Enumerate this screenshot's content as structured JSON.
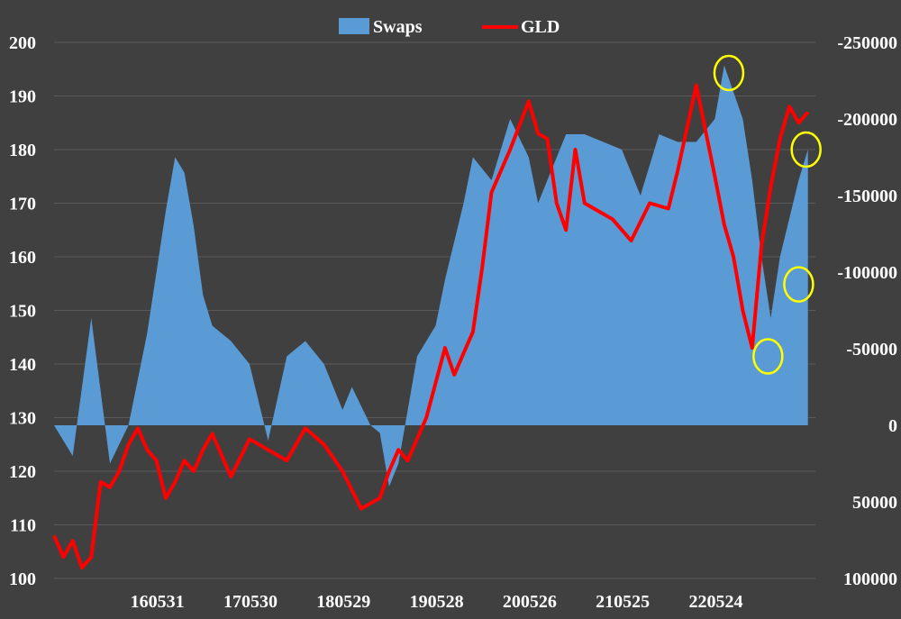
{
  "chart_data": {
    "type": "area",
    "background": "#404040",
    "grid": "horizontal",
    "legend_position": "top-center",
    "x_tick_labels": [
      "160531",
      "170530",
      "180529",
      "190528",
      "200526",
      "210525",
      "220524"
    ],
    "left_axis": {
      "ylim": [
        100,
        200
      ],
      "ticks": [
        "200",
        "190",
        "180",
        "170",
        "160",
        "150",
        "140",
        "130",
        "120",
        "110",
        "100"
      ]
    },
    "right_axis": {
      "inverted": true,
      "ylim": [
        -250000,
        100000
      ],
      "ticks": [
        "-250000",
        "-200000",
        "-150000",
        "-100000",
        "-50000",
        "0",
        "50000",
        "100000"
      ]
    },
    "series": [
      {
        "name": "Swaps",
        "kind": "area",
        "axis": "right",
        "color": "#5b9bd5",
        "x": [
          2015.3,
          2015.5,
          2015.7,
          2015.9,
          2016.1,
          2016.3,
          2016.5,
          2016.6,
          2016.7,
          2016.8,
          2016.9,
          2017.0,
          2017.2,
          2017.4,
          2017.6,
          2017.8,
          2018.0,
          2018.2,
          2018.4,
          2018.5,
          2018.7,
          2018.8,
          2018.9,
          2019.0,
          2019.2,
          2019.4,
          2019.5,
          2019.7,
          2019.8,
          2020.0,
          2020.2,
          2020.4,
          2020.5,
          2020.8,
          2021.0,
          2021.2,
          2021.4,
          2021.6,
          2021.8,
          2022.0,
          2022.2,
          2022.4,
          2022.5,
          2022.7,
          2022.8,
          2022.9,
          2023.0,
          2023.1,
          2023.3,
          2023.4
        ],
        "values": [
          0,
          20000,
          -70000,
          25000,
          0,
          -60000,
          -140000,
          -175000,
          -165000,
          -130000,
          -85000,
          -65000,
          -55000,
          -40000,
          10000,
          -45000,
          -55000,
          -40000,
          -10000,
          -25000,
          0,
          5000,
          40000,
          25000,
          -45000,
          -65000,
          -95000,
          -145000,
          -175000,
          -160000,
          -200000,
          -175000,
          -145000,
          -190000,
          -190000,
          -185000,
          -180000,
          -150000,
          -190000,
          -185000,
          -185000,
          -200000,
          -235000,
          -200000,
          -160000,
          -110000,
          -70000,
          -110000,
          -160000,
          -180000
        ]
      },
      {
        "name": "GLD",
        "kind": "line",
        "axis": "left",
        "color": "#ff0000",
        "x": [
          2015.3,
          2015.4,
          2015.5,
          2015.6,
          2015.7,
          2015.8,
          2015.9,
          2016.0,
          2016.1,
          2016.2,
          2016.3,
          2016.4,
          2016.5,
          2016.6,
          2016.7,
          2016.8,
          2016.9,
          2017.0,
          2017.2,
          2017.4,
          2017.6,
          2017.8,
          2018.0,
          2018.2,
          2018.4,
          2018.6,
          2018.8,
          2018.9,
          2019.0,
          2019.1,
          2019.3,
          2019.5,
          2019.6,
          2019.7,
          2019.8,
          2019.9,
          2020.0,
          2020.2,
          2020.4,
          2020.5,
          2020.6,
          2020.7,
          2020.8,
          2020.9,
          2021.0,
          2021.2,
          2021.3,
          2021.5,
          2021.7,
          2021.9,
          2022.0,
          2022.2,
          2022.4,
          2022.5,
          2022.6,
          2022.7,
          2022.8,
          2022.9,
          2023.0,
          2023.1,
          2023.2,
          2023.3,
          2023.4
        ],
        "values": [
          108,
          104,
          107,
          102,
          104,
          118,
          117,
          120,
          125,
          128,
          124,
          122,
          115,
          118,
          122,
          120,
          124,
          127,
          119,
          126,
          124,
          122,
          128,
          125,
          120,
          113,
          115,
          120,
          124,
          122,
          130,
          143,
          138,
          142,
          146,
          158,
          172,
          180,
          189,
          183,
          182,
          170,
          165,
          180,
          170,
          168,
          167,
          163,
          170,
          169,
          176,
          192,
          175,
          166,
          160,
          150,
          143,
          162,
          173,
          182,
          188,
          185,
          187
        ]
      }
    ]
  },
  "markers": {
    "color": "#ffff00",
    "highlights": [
      {
        "x": 2022.55,
        "y_right": -230000
      },
      {
        "x": 2022.97,
        "y_right": -45000
      },
      {
        "x": 2023.38,
        "y_right": -180000
      },
      {
        "x": 2023.3,
        "y_right": -92000
      }
    ]
  }
}
